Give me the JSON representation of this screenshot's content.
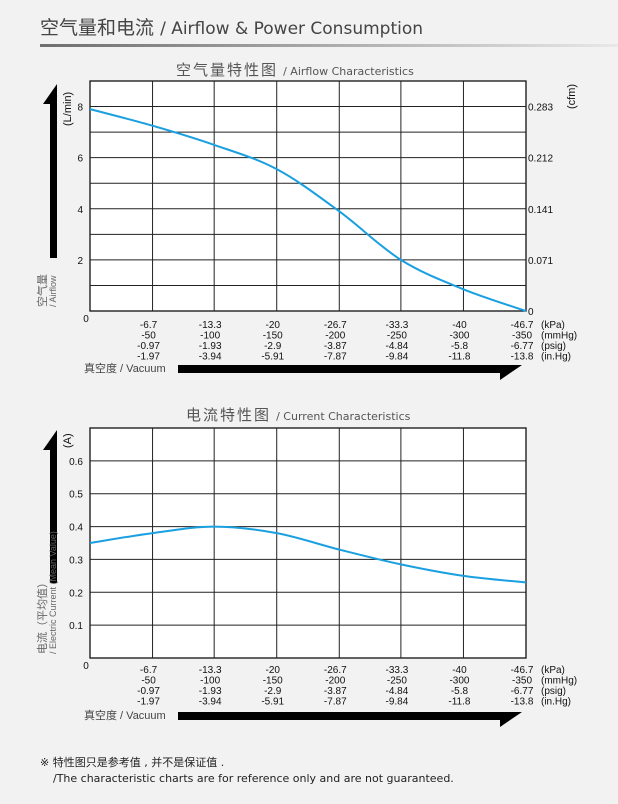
{
  "header": {
    "title_zh": "空气量和电流",
    "title_en": "/ Airflow & Power Consumption"
  },
  "chart_data": [
    {
      "type": "line",
      "title_zh": "空气量特性图",
      "title_en": "/ Airflow Characteristics",
      "ylabel_zh": "空气量",
      "ylabel_en": "/ Airflow",
      "yunit": "(L/min)",
      "y2unit": "(cfm)",
      "xlabel": "真空度 / Vacuum",
      "ylim": [
        0,
        9
      ],
      "yticks": [
        "2",
        "4",
        "6",
        "8"
      ],
      "yticks_values": [
        2,
        4,
        6,
        8
      ],
      "y2ticks": [
        "0",
        "0.071",
        "0.141",
        "0.212",
        "0.283"
      ],
      "y2ticks_values": [
        0,
        2,
        4,
        6,
        8
      ],
      "origin_label": "0",
      "grid": true,
      "x": [
        0,
        -6.7,
        -13.3,
        -20,
        -26.7,
        -33.3,
        -40,
        -46.7
      ],
      "series": [
        {
          "color": "#1aa0e0",
          "values": [
            7.9,
            7.25,
            6.5,
            5.55,
            3.9,
            2.0,
            0.85,
            0
          ]
        }
      ]
    },
    {
      "type": "line",
      "title_zh": "电流特性图",
      "title_en": "/ Current Characteristics",
      "ylabel_zh": "电流（平均值）",
      "ylabel_en": "/ Electric Current (Mean Value)",
      "yunit": "(A)",
      "xlabel": "真空度 / Vacuum",
      "ylim": [
        0,
        0.7
      ],
      "yticks": [
        "0.1",
        "0.2",
        "0.3",
        "0.4",
        "0.5",
        "0.6"
      ],
      "yticks_values": [
        0.1,
        0.2,
        0.3,
        0.4,
        0.5,
        0.6
      ],
      "origin_label": "0",
      "grid": true,
      "x": [
        0,
        -6.7,
        -13.3,
        -20,
        -26.7,
        -33.3,
        -40,
        -46.7
      ],
      "series": [
        {
          "color": "#1aa0e0",
          "values": [
            0.35,
            0.38,
            0.4,
            0.38,
            0.33,
            0.285,
            0.25,
            0.23
          ]
        }
      ]
    }
  ],
  "vacuum_ticks": {
    "kPa": [
      "-6.7",
      "-13.3",
      "-20",
      "-26.7",
      "-33.3",
      "-40",
      "-46.7"
    ],
    "mmHg": [
      "-50",
      "-100",
      "-150",
      "-200",
      "-250",
      "-300",
      "-350"
    ],
    "psig": [
      "-0.97",
      "-1.93",
      "-2.9",
      "-3.87",
      "-4.84",
      "-5.8",
      "-6.77"
    ],
    "inHg": [
      "-1.97",
      "-3.94",
      "-5.91",
      "-7.87",
      "-9.84",
      "-11.8",
      "-13.8"
    ],
    "units": [
      "(kPa)",
      "(mmHg)",
      "(psig)",
      "(in.Hg)"
    ]
  },
  "note": {
    "line1": "※ 特性图只是参考值 , 并不是保证值 .",
    "line2": "/The characteristic charts are for reference only and are not guaranteed."
  }
}
